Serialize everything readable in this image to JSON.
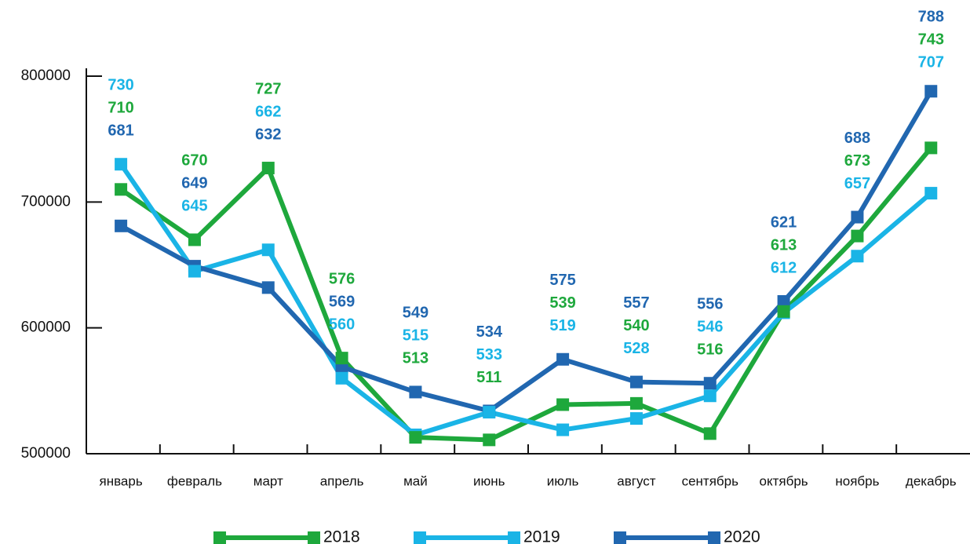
{
  "chart_data": {
    "type": "line",
    "categories": [
      "январь",
      "февраль",
      "март",
      "апрель",
      "май",
      "июнь",
      "июль",
      "август",
      "сентябрь",
      "октябрь",
      "ноябрь",
      "декабрь"
    ],
    "series": [
      {
        "name": "2018",
        "color": "#1ea83c",
        "values": [
          710000,
          670000,
          727000,
          576000,
          513000,
          511000,
          539000,
          540000,
          516000,
          613000,
          673000,
          743000
        ],
        "value_labels": [
          "710",
          "670",
          "727",
          "576",
          "513",
          "511",
          "539",
          "540",
          "516",
          "613",
          "673",
          "743"
        ]
      },
      {
        "name": "2019",
        "color": "#1ab4e6",
        "values": [
          730000,
          645000,
          662000,
          560000,
          515000,
          533000,
          519000,
          528000,
          546000,
          612000,
          657000,
          707000
        ],
        "value_labels": [
          "730",
          "645",
          "662",
          "560",
          "515",
          "533",
          "519",
          "528",
          "546",
          "612",
          "657",
          "707"
        ]
      },
      {
        "name": "2020",
        "color": "#2167b0",
        "values": [
          681000,
          649000,
          632000,
          569000,
          549000,
          534000,
          575000,
          557000,
          556000,
          621000,
          688000,
          788000
        ],
        "value_labels": [
          "681",
          "649",
          "632",
          "569",
          "549",
          "534",
          "575",
          "557",
          "556",
          "621",
          "688",
          "788"
        ]
      }
    ],
    "ylim": [
      500000,
      800000
    ],
    "yticks": [
      500000,
      600000,
      700000,
      800000
    ],
    "legend": "bottom"
  }
}
